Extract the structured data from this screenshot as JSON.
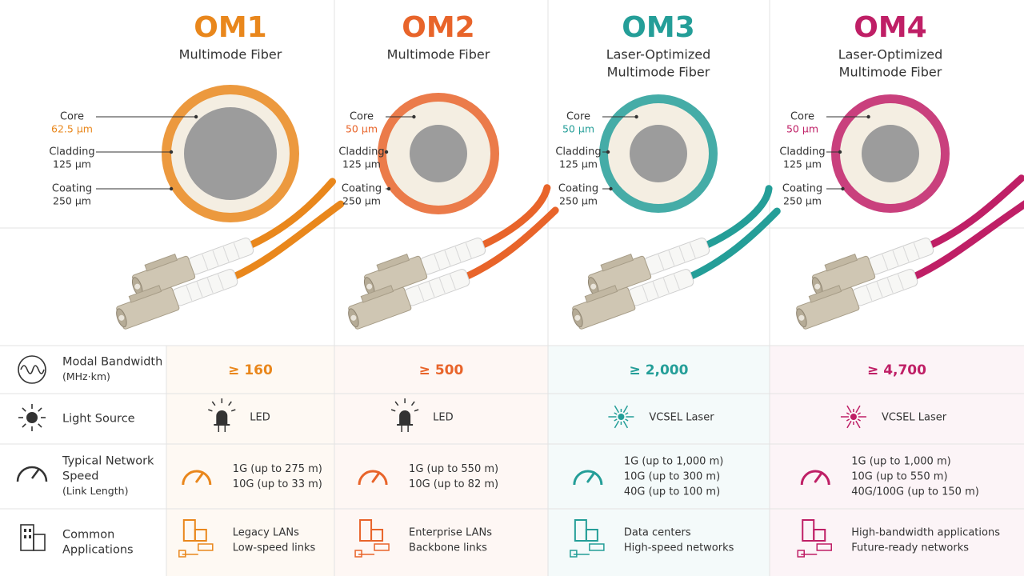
{
  "rows": [
    {
      "title": [
        "Modal Bandwidth"
      ],
      "note": "(MHz·km)"
    },
    {
      "title": [
        "Light Source"
      ]
    },
    {
      "title": [
        "Typical Network",
        "Speed"
      ],
      "note": "(Link Length)"
    },
    {
      "title": [
        "Common",
        "Applications"
      ]
    }
  ],
  "fibers": [
    {
      "name": "OM1",
      "subtitle": [
        "Multimode Fiber"
      ],
      "color": "#e9871c",
      "core": "Core",
      "core_size": "62.5 µm",
      "cladding": "Cladding",
      "cladding_size": "125 µm",
      "coating": "Coating",
      "coating_size": "250 µm",
      "bandwidth": "≥ 160",
      "light_source": "LED",
      "speed": [
        "1G (up to 275 m)",
        "10G (up to 33 m)"
      ],
      "applications": [
        "Legacy LANs",
        "Low-speed links"
      ]
    },
    {
      "name": "OM2",
      "subtitle": [
        "Multimode Fiber"
      ],
      "color": "#e8642a",
      "core": "Core",
      "core_size": "50 µm",
      "cladding": "Cladding",
      "cladding_size": "125 µm",
      "coating": "Coating",
      "coating_size": "250 µm",
      "bandwidth": "≥ 500",
      "light_source": "LED",
      "speed": [
        "1G (up to 550 m)",
        "10G (up to 82 m)"
      ],
      "applications": [
        "Enterprise LANs",
        "Backbone links"
      ]
    },
    {
      "name": "OM3",
      "subtitle": [
        "Laser-Optimized",
        "Multimode Fiber"
      ],
      "color": "#249e98",
      "core": "Core",
      "core_size": "50 µm",
      "cladding": "Cladding",
      "cladding_size": "125 µm",
      "coating": "Coating",
      "coating_size": "250 µm",
      "bandwidth": "≥ 2,000",
      "light_source": "VCSEL Laser",
      "speed": [
        "1G (up to 1,000 m)",
        "10G (up to 300 m)",
        "40G (up to 100 m)"
      ],
      "applications": [
        "Data centers",
        "High-speed networks"
      ]
    },
    {
      "name": "OM4",
      "subtitle": [
        "Laser-Optimized",
        "Multimode Fiber"
      ],
      "color": "#bf1f66",
      "core": "Core",
      "core_size": "50 µm",
      "cladding": "Cladding",
      "cladding_size": "125 µm",
      "coating": "Coating",
      "coating_size": "250 µm",
      "bandwidth": "≥ 4,700",
      "light_source": "VCSEL Laser",
      "speed": [
        "1G (up to 1,000 m)",
        "10G (up to 550 m)",
        "40G/100G (up to 150 m)"
      ],
      "applications": [
        "High-bandwidth applications",
        "Future-ready networks"
      ]
    }
  ]
}
